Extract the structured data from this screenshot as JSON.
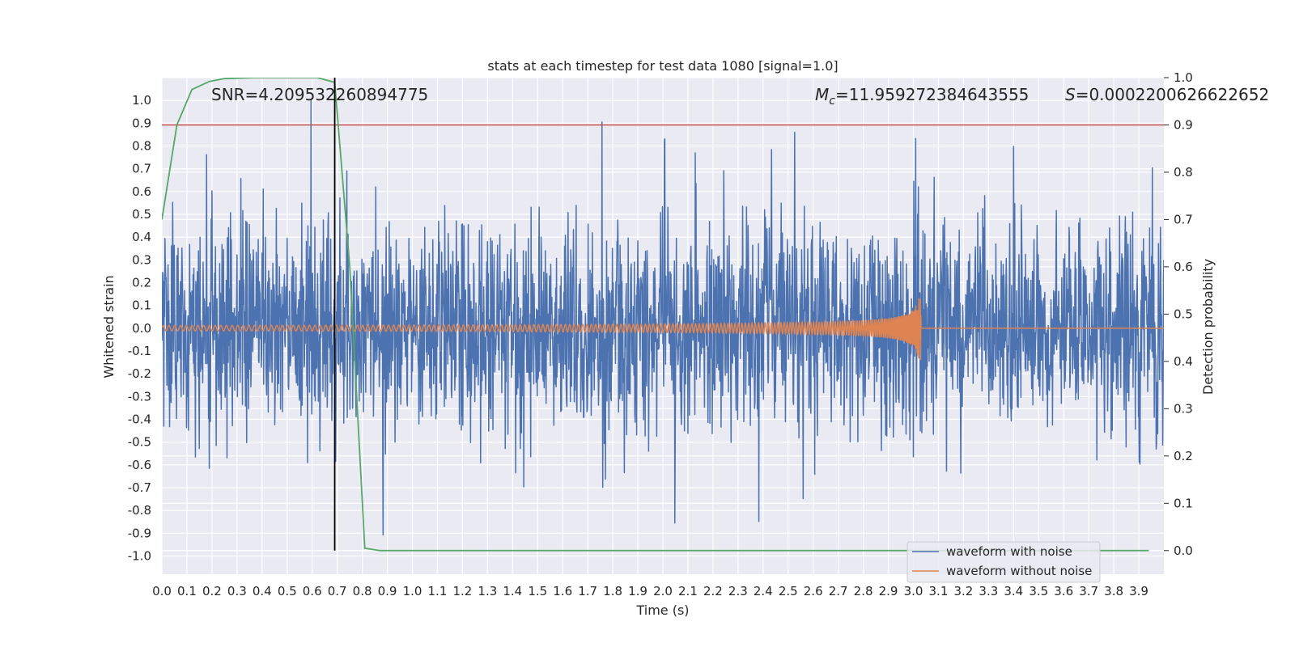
{
  "chart_data": {
    "type": "line",
    "title": "stats at each timestep for test data 1080 [signal=1.0]",
    "xlabel": "Time (s)",
    "ylabel_left": "Whitened strain",
    "ylabel_right": "Detection probability",
    "xlim": [
      0.0,
      4.0
    ],
    "ylim_left": [
      -1.08,
      1.1
    ],
    "ylim_right": [
      -0.05,
      1.0
    ],
    "xticks": [
      "0.0",
      "0.1",
      "0.2",
      "0.3",
      "0.4",
      "0.5",
      "0.6",
      "0.7",
      "0.8",
      "0.9",
      "1.0",
      "1.1",
      "1.2",
      "1.3",
      "1.4",
      "1.5",
      "1.6",
      "1.7",
      "1.8",
      "1.9",
      "2.0",
      "2.1",
      "2.2",
      "2.3",
      "2.4",
      "2.5",
      "2.6",
      "2.7",
      "2.8",
      "2.9",
      "3.0",
      "3.1",
      "3.2",
      "3.3",
      "3.4",
      "3.5",
      "3.6",
      "3.7",
      "3.8",
      "3.9"
    ],
    "yticks_left": [
      "1.0",
      "0.9",
      "0.8",
      "0.7",
      "0.6",
      "0.5",
      "0.4",
      "0.3",
      "0.2",
      "0.1",
      "0.0",
      "-0.1",
      "-0.2",
      "-0.3",
      "-0.4",
      "-0.5",
      "-0.6",
      "-0.7",
      "-0.8",
      "-0.9",
      "-1.0"
    ],
    "yticks_right": [
      "1.0",
      "0.9",
      "0.8",
      "0.7",
      "0.6",
      "0.5",
      "0.4",
      "0.3",
      "0.2",
      "0.1",
      "0.0"
    ],
    "grid": true,
    "legend_position": "bottom-right",
    "annotations": {
      "snr": "SNR=4.209532260894775",
      "mc_symbol": "M",
      "mc_subscript": "c",
      "mc_value": "=11.959272384643555",
      "s_symbol": "S",
      "s_value": "=0.0002200626622652"
    },
    "series": [
      {
        "name": "waveform with noise",
        "axis": "left",
        "color": "#4c72b0",
        "kind": "whitened strain noise, amplitude envelope approx ±0.6, spikes up to 1.0 and down to -0.92",
        "x_range": [
          0.0,
          4.0
        ]
      },
      {
        "name": "waveform without noise",
        "axis": "left",
        "color": "#dd8452",
        "kind": "chirp, amplitude ~0.01 at t=0 growing to ~0.19 at merger t=3.03, zero after",
        "merger_time": 3.03,
        "peak_amplitude": 0.19
      },
      {
        "name": "detection probability",
        "axis": "right",
        "color": "#55a868",
        "x": [
          0.0,
          0.06,
          0.12,
          0.19,
          0.25,
          0.31,
          0.37,
          0.44,
          0.5,
          0.56,
          0.62,
          0.69,
          0.75,
          0.81,
          0.87,
          0.94,
          1.0,
          2.0,
          3.0,
          3.94
        ],
        "values": [
          0.7,
          0.9,
          0.975,
          0.992,
          0.998,
          0.999,
          1.0,
          1.0,
          1.0,
          1.0,
          1.0,
          0.99,
          0.6,
          0.005,
          0.0,
          0.0,
          0.0,
          0.0,
          0.0,
          0.0
        ]
      }
    ],
    "threshold_line": {
      "axis": "right",
      "value": 0.9,
      "color": "#c44e52"
    },
    "detection_marker": {
      "x": 0.69,
      "color": "#000000"
    }
  }
}
